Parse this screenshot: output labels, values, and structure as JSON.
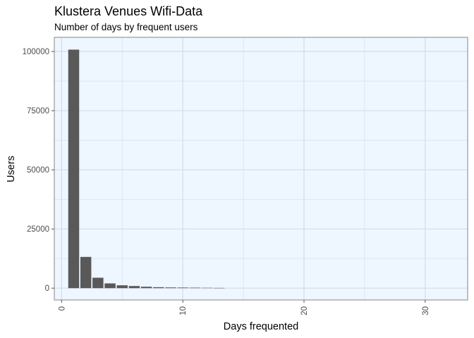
{
  "chart_data": {
    "type": "bar",
    "title": "Klustera Venues Wifi-Data",
    "subtitle": "Number of days by frequent users",
    "xlabel": "Days frequented",
    "ylabel": "Users",
    "xlim": [
      -0.6,
      33.5
    ],
    "ylim": [
      -5000,
      106000
    ],
    "x_ticks": [
      0,
      10,
      20,
      30
    ],
    "y_ticks": [
      0,
      25000,
      50000,
      75000,
      100000
    ],
    "grid": true,
    "legend": "none",
    "x": [
      1,
      2,
      3,
      4,
      5,
      6,
      7,
      8,
      9,
      10,
      11,
      12,
      13
    ],
    "values": [
      100800,
      13200,
      4400,
      2000,
      1200,
      900,
      600,
      400,
      300,
      250,
      200,
      150,
      100
    ],
    "colors": {
      "panel_background": "#eef6ff",
      "grid": "#d3dbe4",
      "panel_border": "#a0a0a0",
      "bar": "#595959"
    }
  }
}
